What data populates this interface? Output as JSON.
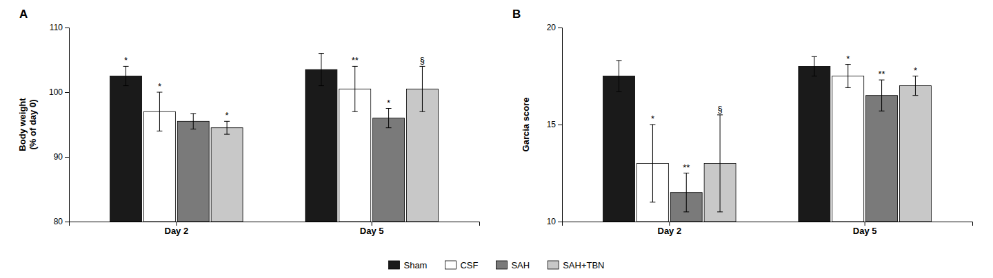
{
  "chart_data": [
    {
      "type": "bar",
      "title": "A",
      "y_label": "Body weight\n(% of day 0)",
      "categories": [
        "Day 2",
        "Day 5"
      ],
      "series": [
        {
          "name": "Sham",
          "color": "#1a1a1a",
          "values": [
            102.5,
            103.5
          ],
          "errors": [
            1.5,
            2.5
          ],
          "annotations": [
            "*",
            null
          ]
        },
        {
          "name": "CSF",
          "color": "#ffffff",
          "values": [
            97.0,
            100.5
          ],
          "errors": [
            3.0,
            3.5
          ],
          "annotations": [
            "*",
            "**"
          ]
        },
        {
          "name": "SAH",
          "color": "#7a7a7a",
          "values": [
            95.5,
            96.0
          ],
          "errors": [
            1.2,
            1.5
          ],
          "annotations": [
            null,
            "*"
          ]
        },
        {
          "name": "SAH+TBN",
          "color": "#c8c8c8",
          "values": [
            94.5,
            100.5
          ],
          "errors": [
            1.0,
            3.5
          ],
          "annotations": [
            "*",
            "§"
          ]
        }
      ],
      "ylim": [
        80,
        110
      ],
      "yticks": [
        80,
        90,
        100,
        110
      ],
      "grid": false,
      "legend": "bottom"
    },
    {
      "type": "bar",
      "title": "B",
      "y_label": "Garcia score",
      "categories": [
        "Day 2",
        "Day 5"
      ],
      "series": [
        {
          "name": "Sham",
          "color": "#1a1a1a",
          "values": [
            17.5,
            18.0
          ],
          "errors": [
            0.8,
            0.5
          ],
          "annotations": [
            null,
            null
          ]
        },
        {
          "name": "CSF",
          "color": "#ffffff",
          "values": [
            13.0,
            17.5
          ],
          "errors": [
            2.0,
            0.6
          ],
          "annotations": [
            "*",
            "*"
          ]
        },
        {
          "name": "SAH",
          "color": "#7a7a7a",
          "values": [
            11.5,
            16.5
          ],
          "errors": [
            1.0,
            0.8
          ],
          "annotations": [
            "**",
            "**"
          ]
        },
        {
          "name": "SAH+TBN",
          "color": "#c8c8c8",
          "values": [
            13.0,
            17.0
          ],
          "errors": [
            2.5,
            0.5
          ],
          "annotations": [
            "§",
            "*"
          ]
        }
      ],
      "ylim": [
        10,
        20
      ],
      "yticks": [
        10,
        15,
        20
      ],
      "grid": false
    }
  ]
}
